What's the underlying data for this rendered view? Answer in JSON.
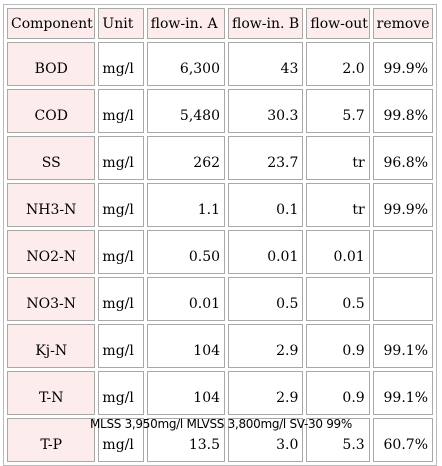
{
  "table": {
    "headers": [
      "Component",
      "Unit",
      "flow-in. A",
      "flow-in. B",
      "flow-out",
      "remove"
    ],
    "rows": [
      {
        "component": "BOD",
        "unit": "mg/l",
        "flow_in_a": "6,300",
        "flow_in_b": "43",
        "flow_out": "2.0",
        "remove": "99.9%"
      },
      {
        "component": "COD",
        "unit": "mg/l",
        "flow_in_a": "5,480",
        "flow_in_b": "30.3",
        "flow_out": "5.7",
        "remove": "99.8%"
      },
      {
        "component": "SS",
        "unit": "mg/l",
        "flow_in_a": "262",
        "flow_in_b": "23.7",
        "flow_out": "tr",
        "remove": "96.8%"
      },
      {
        "component": "NH3-N",
        "unit": "mg/l",
        "flow_in_a": "1.1",
        "flow_in_b": "0.1",
        "flow_out": "tr",
        "remove": "99.9%"
      },
      {
        "component": "NO2-N",
        "unit": "mg/l",
        "flow_in_a": "0.50",
        "flow_in_b": "0.01",
        "flow_out": "0.01",
        "remove": ""
      },
      {
        "component": "NO3-N",
        "unit": "mg/l",
        "flow_in_a": "0.01",
        "flow_in_b": "0.5",
        "flow_out": "0.5",
        "remove": ""
      },
      {
        "component": "Kj-N",
        "unit": "mg/l",
        "flow_in_a": "104",
        "flow_in_b": "2.9",
        "flow_out": "0.9",
        "remove": "99.1%"
      },
      {
        "component": "T-N",
        "unit": "mg/l",
        "flow_in_a": "104",
        "flow_in_b": "2.9",
        "flow_out": "0.9",
        "remove": "99.1%"
      },
      {
        "component": "T-P",
        "unit": "mg/l",
        "flow_in_a": "13.5",
        "flow_in_b": "3.0",
        "flow_out": "5.3",
        "remove": "60.7%"
      }
    ]
  },
  "footer": "MLSS 3,950mg/l MLVSS 3,800mg/l SV-30 99%",
  "colors": {
    "header_bg": "#fcecec",
    "component_bg": "#fcecec",
    "border": "#a8a8a8"
  }
}
